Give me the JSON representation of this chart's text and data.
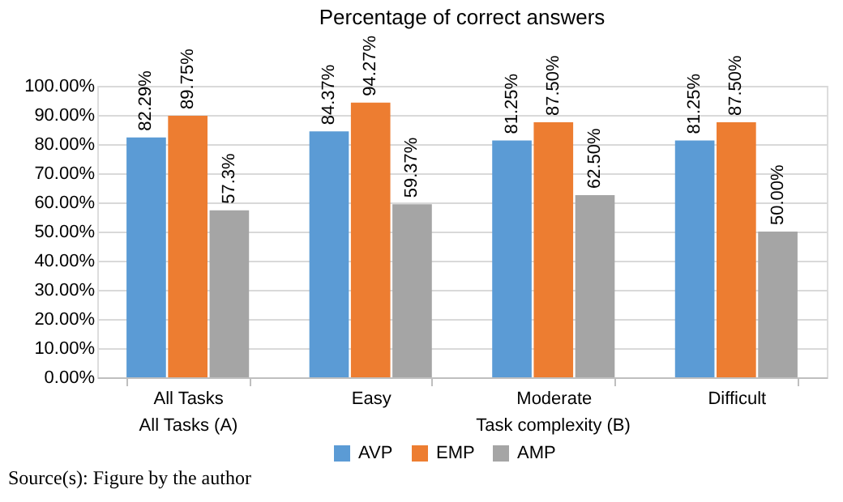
{
  "chart_data": {
    "type": "bar",
    "title": "Percentage of correct answers",
    "categories": [
      "All Tasks",
      "Easy",
      "Moderate",
      "Difficult"
    ],
    "series": [
      {
        "name": "AVP",
        "color": "#5b9bd5",
        "values": [
          82.29,
          84.37,
          81.25,
          81.25
        ],
        "value_labels": [
          "82.29%",
          "84.37%",
          "81.25%",
          "81.25%"
        ]
      },
      {
        "name": "EMP",
        "color": "#ed7d31",
        "values": [
          89.75,
          94.27,
          87.5,
          87.5
        ],
        "value_labels": [
          "89.75%",
          "94.27%",
          "87.50%",
          "87.50%"
        ]
      },
      {
        "name": "AMP",
        "color": "#a5a5a5",
        "values": [
          57.3,
          59.37,
          62.5,
          50.0
        ],
        "value_labels": [
          "57.3%",
          "59.37%",
          "62.50%",
          "50.00%"
        ]
      }
    ],
    "ylim": [
      0,
      100
    ],
    "yticks": [
      {
        "value": 0,
        "label": "0.00%"
      },
      {
        "value": 10,
        "label": "10.00%"
      },
      {
        "value": 20,
        "label": "20.00%"
      },
      {
        "value": 30,
        "label": "30.00%"
      },
      {
        "value": 40,
        "label": "40.00%"
      },
      {
        "value": 50,
        "label": "50.00%"
      },
      {
        "value": 60,
        "label": "60.00%"
      },
      {
        "value": 70,
        "label": "70.00%"
      },
      {
        "value": 80,
        "label": "80.00%"
      },
      {
        "value": 90,
        "label": "90.00%"
      },
      {
        "value": 100,
        "label": "100.00%"
      }
    ],
    "grid": "y",
    "legend": "bottom",
    "annotations": [
      "All Tasks (A)",
      "Task complexity (B)",
      "Source(s): Figure by the author"
    ]
  }
}
